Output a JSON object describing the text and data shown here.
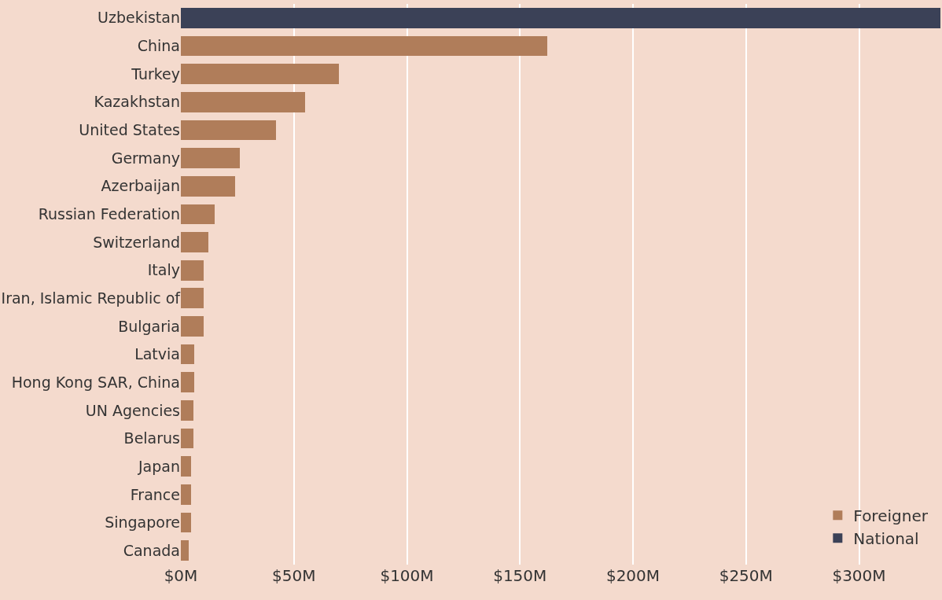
{
  "chart_data": {
    "type": "bar",
    "orientation": "horizontal",
    "stacked": true,
    "categories": [
      "Uzbekistan",
      "China",
      "Turkey",
      "Kazakhstan",
      "United States",
      "Germany",
      "Azerbaijan",
      "Russian Federation",
      "Switzerland",
      "Italy",
      "Iran, Islamic Republic of",
      "Bulgaria",
      "Latvia",
      "Hong Kong SAR, China",
      "UN Agencies",
      "Belarus",
      "Japan",
      "France",
      "Singapore",
      "Canada"
    ],
    "series": [
      {
        "name": "Foreigner",
        "color": "#b07d5a",
        "values": [
          null,
          162,
          70,
          55,
          42,
          26,
          24,
          15,
          12,
          10,
          10,
          10,
          6,
          6,
          5.5,
          5.5,
          4.5,
          4.5,
          4.5,
          3.5
        ]
      },
      {
        "name": "National",
        "color": "#3b4157",
        "values": [
          336,
          null,
          null,
          null,
          null,
          null,
          null,
          null,
          null,
          null,
          null,
          null,
          null,
          null,
          null,
          null,
          null,
          null,
          null,
          null
        ]
      }
    ],
    "xlim": [
      0,
      336
    ],
    "xticks": [
      {
        "value": 0,
        "label": "$0M"
      },
      {
        "value": 50,
        "label": "$50M"
      },
      {
        "value": 100,
        "label": "$100M"
      },
      {
        "value": 150,
        "label": "$150M"
      },
      {
        "value": 200,
        "label": "$200M"
      },
      {
        "value": 250,
        "label": "$250M"
      },
      {
        "value": 300,
        "label": "$300M"
      }
    ],
    "grid": "x",
    "legend": "bottom right"
  }
}
